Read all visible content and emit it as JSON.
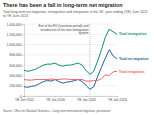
{
  "chart_data": {
    "type": "line",
    "title": "There has been a fall in long-term net migration",
    "subtitle": "Total long-term net migration, immigration and emigration in the UK, year ending (YE) June 2012 to YE June 2024",
    "categories": [
      "YE Jun 2012",
      null,
      null,
      null,
      null,
      null,
      null,
      null,
      "YE Jun 2016",
      null,
      null,
      null,
      null,
      null,
      null,
      null,
      "YE Jun 2020",
      null,
      null,
      null,
      null,
      null,
      null,
      null,
      "YE Jun 2024"
    ],
    "series": [
      {
        "name": "Total immigration",
        "color": "#118c7b",
        "values": [
          500000,
          480000,
          500000,
          520000,
          560000,
          600000,
          620000,
          620000,
          640000,
          600000,
          580000,
          600000,
          600000,
          620000,
          640000,
          600000,
          500000,
          420000,
          480000,
          680000,
          900000,
          1150000,
          1300000,
          1250000,
          1200000
        ]
      },
      {
        "name": "Total net migration",
        "color": "#206095",
        "values": [
          180000,
          170000,
          190000,
          200000,
          240000,
          280000,
          300000,
          290000,
          320000,
          280000,
          250000,
          270000,
          280000,
          300000,
          320000,
          280000,
          210000,
          130000,
          180000,
          380000,
          560000,
          740000,
          900000,
          780000,
          720000
        ]
      },
      {
        "name": "Total emigration",
        "color": "#f66068",
        "values": [
          320000,
          310000,
          310000,
          320000,
          320000,
          320000,
          320000,
          330000,
          320000,
          320000,
          330000,
          330000,
          320000,
          320000,
          320000,
          320000,
          290000,
          290000,
          300000,
          300000,
          340000,
          410000,
          400000,
          470000,
          480000
        ]
      }
    ],
    "ylim": [
      0,
      1400000
    ],
    "yticks": [
      0,
      {
        "value": 200000,
        "label": "200,000"
      },
      {
        "value": 400000,
        "label": "400,000"
      },
      {
        "value": 600000,
        "label": "600,000"
      },
      {
        "value": 800000,
        "label": "800,000"
      },
      {
        "value": 1000000,
        "label": "1,000,000"
      },
      {
        "value": 1200000,
        "label": "1,200,000"
      },
      {
        "value": 1400000,
        "label": "1,400,000"
      }
    ],
    "grid": true,
    "annotations": [
      {
        "text": "Exit of the EU (transition period) and introduction of the new immigration system",
        "x": 17
      }
    ],
    "source": "Source: Office for National Statistics – Long-term international migration, provisional"
  }
}
